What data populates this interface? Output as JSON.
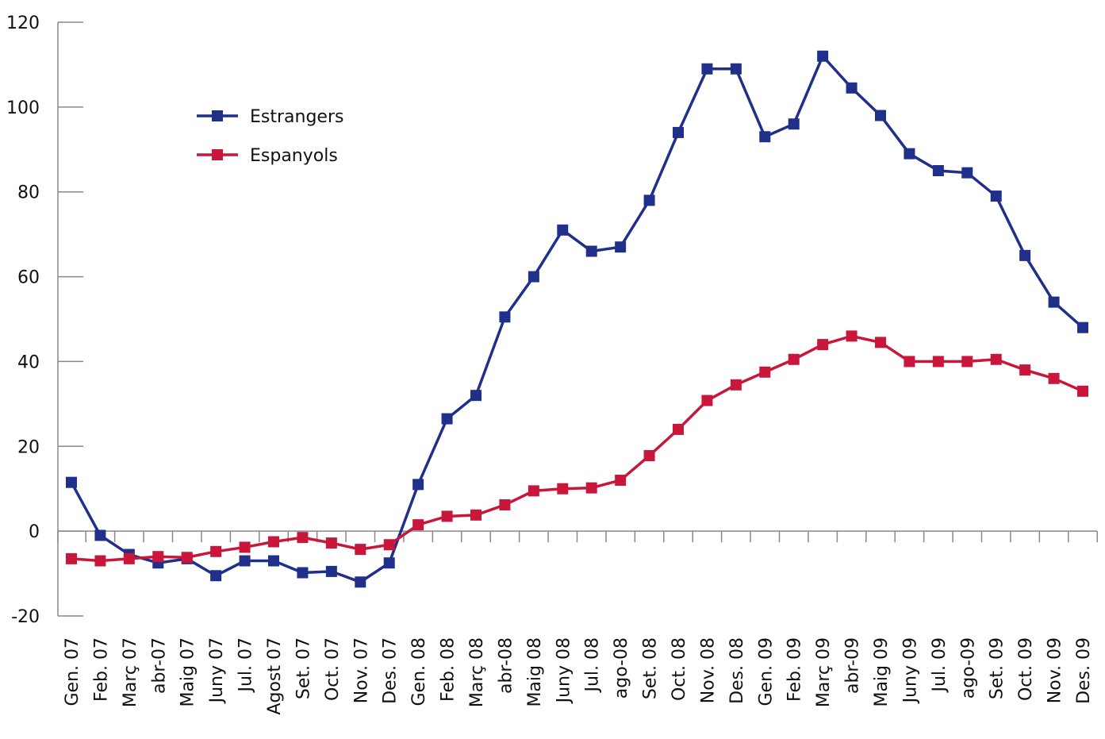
{
  "chart_data": {
    "type": "line",
    "categories": [
      "Gen. 07",
      "Feb. 07",
      "Març 07",
      "abr-07",
      "Maig 07",
      "Juny 07",
      "Jul. 07",
      "Agost 07",
      "Set. 07",
      "Oct. 07",
      "Nov. 07",
      "Des. 07",
      "Gen. 08",
      "Feb. 08",
      "Març 08",
      "abr-08",
      "Maig 08",
      "Juny 08",
      "Jul. 08",
      "ago-08",
      "Set. 08",
      "Oct. 08",
      "Nov. 08",
      "Des. 08",
      "Gen. 09",
      "Feb. 09",
      "Març 09",
      "abr-09",
      "Maig 09",
      "Juny 09",
      "Jul. 09",
      "ago-09",
      "Set. 09",
      "Oct. 09",
      "Nov. 09",
      "Des. 09"
    ],
    "series": [
      {
        "name": "Estrangers",
        "color": "#1f2f8a",
        "values": [
          11.5,
          -1,
          -5.5,
          -7.5,
          -6.5,
          -10.5,
          -7,
          -7,
          -9.8,
          -9.5,
          -12,
          -7.5,
          11,
          26.5,
          32,
          50.5,
          60,
          71,
          66,
          67,
          78,
          94,
          109,
          109,
          93,
          96,
          112,
          104.5,
          98,
          89,
          85,
          84.5,
          79,
          65,
          54,
          48
        ]
      },
      {
        "name": "Espanyols",
        "color": "#c8173b",
        "values": [
          -6.5,
          -7,
          -6.5,
          -6,
          -6.2,
          -4.8,
          -3.8,
          -2.5,
          -1.5,
          -2.8,
          -4.3,
          -3.2,
          1.5,
          3.5,
          3.8,
          6.2,
          9.5,
          10,
          10.2,
          12,
          17.8,
          24,
          30.8,
          34.5,
          37.5,
          40.5,
          44,
          46,
          44.5,
          40,
          40,
          40,
          40.5,
          38,
          36,
          33
        ]
      }
    ],
    "ylim": [
      -20,
      120
    ],
    "yticks": [
      -20,
      0,
      20,
      40,
      60,
      80,
      100,
      120
    ],
    "grid": false,
    "legend": "upper left"
  }
}
